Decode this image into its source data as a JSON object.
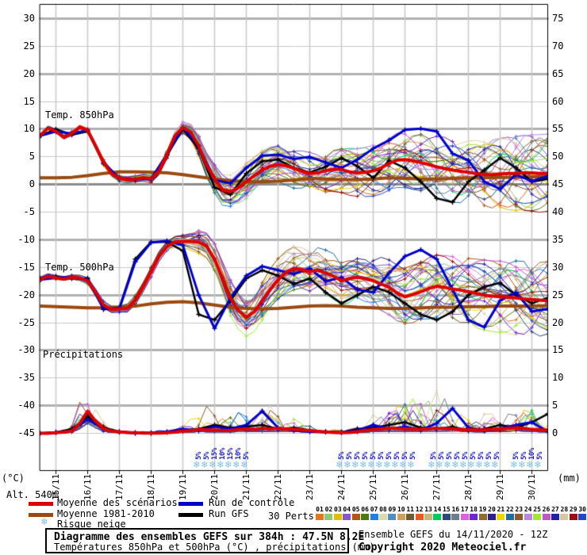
{
  "alt_label": "Alt. 540m",
  "axis_units": {
    "left": "(°C)",
    "right": "(mm)"
  },
  "panel_labels": {
    "t850": "Temp. 850hPa",
    "t500": "Temp. 500hPa",
    "precip": "Précipitations"
  },
  "legend": {
    "mean": "Moyenne des scénarios",
    "climo": "Moyenne 1981-2010",
    "snow": "Risque neige",
    "control": "Run de contrôle",
    "gfs": "Run GFS",
    "perts": "30 Perts."
  },
  "colors": {
    "mean": "#dd0000",
    "climo": "#9a4a10",
    "control": "#0000cc",
    "gfs": "#000000",
    "snowflake": "#7fc0e8",
    "snow_label": "#2222cc",
    "grid_minor": "#c8c8c8",
    "grid_major": "#b0b0b0",
    "zero_line": "#8c8c8c",
    "border": "#000000"
  },
  "members": {
    "count": 30,
    "labels": [
      "01",
      "02",
      "03",
      "04",
      "05",
      "06",
      "07",
      "08",
      "09",
      "10",
      "11",
      "12",
      "13",
      "14",
      "15",
      "16",
      "17",
      "18",
      "19",
      "20",
      "21",
      "22",
      "23",
      "24",
      "25",
      "26",
      "27",
      "28",
      "29",
      "30"
    ],
    "colors": [
      "#e07820",
      "#90c878",
      "#e0c000",
      "#8858c8",
      "#b05818",
      "#507a10",
      "#2080e8",
      "#ded8b0",
      "#5090c0",
      "#d0a058",
      "#6e5c30",
      "#e85c20",
      "#c8b878",
      "#00cc60",
      "#2e4878",
      "#6e7e90",
      "#e060e0",
      "#6a28d0",
      "#8e6e2e",
      "#2e1e90",
      "#e8d800",
      "#1e6ea0",
      "#8e5a28",
      "#bb88dd",
      "#a0e838",
      "#c058c8",
      "#2020a8",
      "#d8c8a0",
      "#981010",
      "#2048c8"
    ]
  },
  "snow_risk": {
    "groups": [
      {
        "start_day": 5.0,
        "step_day": 0.25,
        "percents": [
          "5%",
          "5%",
          "15%",
          "10%",
          "15%",
          "10%",
          "5%"
        ]
      },
      {
        "start_day": 9.5,
        "step_day": 0.25,
        "percents": [
          "5%",
          "5%",
          "5%",
          "5%",
          "5%",
          "5%",
          "5%",
          "5%",
          "5%",
          "5%"
        ]
      },
      {
        "start_day": 12.4,
        "step_day": 0.25,
        "percents": [
          "5%",
          "5%",
          "5%",
          "5%",
          "5%",
          "5%",
          "5%",
          "5%",
          "5%"
        ]
      },
      {
        "start_day": 15.0,
        "step_day": 0.25,
        "percents": [
          "5%",
          "5%",
          "10%",
          "5%"
        ]
      }
    ]
  },
  "title_box": {
    "line1": "Diagramme des ensembles GEFS sur 384h : 47.5N 8.2E",
    "line2": "Températures 850hPa et 500hPa (°C) , précipitations (mm)"
  },
  "footer": {
    "run_info": "Ensemble GEFS du 14/11/2020 - 12Z",
    "copyright": "Copyright 2020 Meteociel.fr"
  },
  "chart_data": {
    "type": "line",
    "x_axis": {
      "run_start": "14/11/2020 12Z",
      "hours_total": 384,
      "days_total": 16,
      "label_dates": [
        "15/11",
        "16/11",
        "17/11",
        "18/11",
        "19/11",
        "20/11",
        "21/11",
        "22/11",
        "23/11",
        "24/11",
        "25/11",
        "26/11",
        "27/11",
        "28/11",
        "29/11",
        "30/11"
      ]
    },
    "y_axis_left": {
      "min": -45,
      "max": 30,
      "ticks": [
        30,
        25,
        20,
        15,
        10,
        5,
        0,
        -5,
        -10,
        -15,
        -20,
        -25,
        -30,
        -35,
        -40,
        -45
      ]
    },
    "y_axis_right": {
      "min": 0,
      "max": 75,
      "ticks": [
        75,
        70,
        65,
        60,
        55,
        50,
        45,
        40,
        35,
        30,
        25,
        20,
        15,
        10,
        5,
        0
      ]
    },
    "panels": [
      {
        "id": "t850",
        "label": "Temp. 850hPa",
        "mean": {
          "step": 0.25,
          "values": [
            8.8,
            10.2,
            9.6,
            8.5,
            9.2,
            10.4,
            9.8,
            7.0,
            4.0,
            2.0,
            1.1,
            0.9,
            1.0,
            1.2,
            1.0,
            2.5,
            5.5,
            8.8,
            10.3,
            9.5,
            7.0,
            3.5,
            1.0,
            -1.0,
            -1.3,
            -0.6,
            0.5,
            1.6,
            2.6,
            3.3,
            3.6,
            3.4,
            2.9,
            2.4,
            2.0,
            2.1,
            2.5,
            2.8,
            2.7,
            2.3,
            2.1,
            2.2,
            2.5,
            3.0,
            3.8,
            4.4,
            4.5,
            4.3,
            4.0,
            3.6,
            3.2,
            2.9,
            2.6,
            2.4,
            2.2,
            2.0,
            1.8,
            1.8,
            1.9,
            2.0,
            2.0,
            2.1,
            2.1,
            2.0,
            2.0
          ]
        },
        "control": {
          "step": 0.5,
          "values": [
            8.8,
            9.6,
            9.2,
            9.8,
            4.0,
            1.1,
            1.0,
            1.0,
            5.5,
            10.3,
            7.0,
            0.8,
            0.2,
            3.0,
            5.2,
            5.4,
            4.6,
            5.0,
            4.0,
            3.0,
            4.5,
            6.5,
            8.0,
            9.9,
            10.1,
            9.6,
            5.6,
            4.4,
            0.5,
            -0.8,
            1.8,
            0.6,
            1.5
          ]
        },
        "gfs": {
          "step": 0.5,
          "values": [
            8.8,
            10.0,
            9.0,
            9.6,
            3.8,
            1.0,
            0.9,
            1.1,
            5.3,
            10.0,
            6.5,
            -0.5,
            -1.8,
            2.0,
            4.2,
            4.5,
            3.0,
            2.2,
            3.2,
            4.8,
            3.3,
            1.2,
            4.3,
            3.0,
            0.5,
            -2.5,
            -3.2,
            0.5,
            2.6,
            4.8,
            3.0,
            0.5,
            1.0
          ]
        },
        "climatology": {
          "step": 0.5,
          "values": [
            1.2,
            1.2,
            1.3,
            1.6,
            2.0,
            2.3,
            2.3,
            2.2,
            2.1,
            1.8,
            1.4,
            1.0,
            0.7,
            0.5,
            0.5,
            0.6,
            0.8,
            1.1,
            1.0,
            0.9,
            0.9,
            1.0,
            1.2,
            1.1,
            1.0,
            1.0,
            1.1,
            1.2,
            1.2,
            1.3,
            1.3,
            1.4,
            1.5
          ]
        },
        "spread": {
          "step": 0.5,
          "values": [
            0.4,
            0.4,
            0.4,
            0.4,
            0.5,
            0.5,
            0.5,
            0.6,
            0.7,
            0.9,
            1.6,
            2.2,
            2.6,
            2.9,
            3.0,
            3.0,
            3.1,
            3.3,
            3.5,
            3.6,
            3.8,
            4.0,
            4.2,
            4.4,
            4.6,
            4.8,
            5.0,
            5.2,
            5.4,
            5.6,
            5.8,
            6.0,
            6.2
          ]
        }
      },
      {
        "id": "t500",
        "label": "Temp. 500hPa",
        "mean": {
          "step": 0.25,
          "values": [
            -17.2,
            -16.6,
            -16.9,
            -17.1,
            -16.8,
            -16.9,
            -17.4,
            -19.5,
            -21.8,
            -22.6,
            -22.5,
            -22.4,
            -21.0,
            -18.5,
            -15.8,
            -13.0,
            -11.2,
            -10.4,
            -10.3,
            -10.3,
            -10.4,
            -11.2,
            -13.5,
            -17.0,
            -20.5,
            -22.8,
            -24.0,
            -23.0,
            -21.0,
            -19.0,
            -17.2,
            -15.9,
            -15.2,
            -15.4,
            -15.8,
            -15.5,
            -16.0,
            -16.6,
            -17.4,
            -17.0,
            -16.8,
            -17.0,
            -17.4,
            -18.0,
            -18.6,
            -19.6,
            -20.3,
            -19.9,
            -19.4,
            -18.8,
            -18.4,
            -18.6,
            -18.9,
            -19.1,
            -19.4,
            -19.7,
            -20.0,
            -20.2,
            -20.3,
            -20.4,
            -20.5,
            -20.7,
            -20.8,
            -20.9,
            -21.0
          ]
        },
        "control": {
          "step": 0.5,
          "values": [
            -17.2,
            -16.9,
            -16.8,
            -17.3,
            -22.4,
            -22.5,
            -14.0,
            -10.5,
            -10.2,
            -11.0,
            -20.0,
            -26.0,
            -20.5,
            -16.5,
            -14.8,
            -15.5,
            -16.2,
            -15.2,
            -17.5,
            -16.8,
            -19.0,
            -19.5,
            -16.0,
            -13.0,
            -11.8,
            -13.5,
            -19.0,
            -24.5,
            -25.8,
            -21.0,
            -19.5,
            -23.0,
            -22.5
          ]
        },
        "gfs": {
          "step": 0.5,
          "values": [
            -17.2,
            -16.7,
            -17.0,
            -17.0,
            -22.6,
            -22.3,
            -13.5,
            -10.4,
            -10.4,
            -12.0,
            -23.5,
            -24.5,
            -21.0,
            -17.0,
            -15.5,
            -16.5,
            -18.0,
            -17.0,
            -19.5,
            -21.5,
            -20.0,
            -18.5,
            -19.5,
            -21.5,
            -23.5,
            -24.5,
            -23.0,
            -20.0,
            -18.5,
            -17.8,
            -20.0,
            -21.5,
            -20.5
          ]
        },
        "climatology": {
          "step": 0.5,
          "values": [
            -22.0,
            -22.1,
            -22.2,
            -22.3,
            -22.3,
            -22.2,
            -22.0,
            -21.6,
            -21.3,
            -21.2,
            -21.4,
            -21.8,
            -22.2,
            -22.4,
            -22.5,
            -22.4,
            -22.2,
            -22.0,
            -21.9,
            -22.0,
            -22.2,
            -22.3,
            -22.4,
            -22.4,
            -22.3,
            -22.2,
            -22.2,
            -22.1,
            -22.1,
            -22.0,
            -22.0,
            -22.0,
            -21.9
          ]
        },
        "spread": {
          "step": 0.5,
          "values": [
            0.4,
            0.4,
            0.4,
            0.5,
            0.6,
            0.6,
            0.8,
            0.8,
            0.8,
            1.0,
            1.8,
            2.4,
            2.8,
            3.0,
            3.2,
            3.3,
            3.4,
            3.5,
            3.6,
            3.7,
            3.9,
            4.1,
            4.3,
            4.5,
            4.7,
            4.9,
            5.1,
            5.3,
            5.5,
            5.6,
            5.8,
            6.0,
            6.2
          ]
        }
      },
      {
        "id": "precip",
        "label": "Précipitations",
        "baseline_left_value": -45,
        "mean": {
          "step": 0.25,
          "values": [
            0,
            0,
            0.1,
            0.2,
            0.4,
            1.8,
            4.0,
            2.2,
            0.8,
            0.4,
            0.25,
            0.15,
            0.1,
            0.05,
            0.05,
            0.05,
            0.1,
            0.2,
            0.4,
            0.5,
            0.7,
            0.6,
            0.6,
            0.5,
            0.5,
            0.7,
            0.8,
            0.7,
            0.9,
            0.8,
            0.9,
            0.8,
            0.7,
            0.6,
            0.5,
            0.35,
            0.25,
            0.15,
            0.1,
            0.15,
            0.3,
            0.5,
            0.7,
            0.8,
            0.9,
            0.85,
            0.8,
            0.75,
            0.7,
            0.8,
            0.9,
            0.85,
            0.8,
            0.7,
            0.65,
            0.6,
            0.6,
            0.7,
            0.8,
            0.9,
            1.0,
            0.9,
            0.7,
            0.6,
            0.6
          ]
        },
        "control": {
          "step": 0.5,
          "values": [
            0,
            0.1,
            0.5,
            2.5,
            0.8,
            0.2,
            0,
            0.1,
            0.3,
            0.8,
            0.5,
            1.2,
            0.8,
            1.5,
            4.0,
            1.0,
            0.5,
            0.3,
            0.2,
            0.1,
            0.5,
            1.5,
            0.8,
            1.2,
            0.6,
            1.8,
            4.5,
            1.0,
            0.5,
            0.8,
            1.5,
            2.0,
            0.3
          ]
        },
        "gfs": {
          "step": 0.5,
          "values": [
            0,
            0.2,
            0.8,
            3.0,
            1.0,
            0.3,
            0.1,
            0,
            0.2,
            0.5,
            0.8,
            1.5,
            1.0,
            1.2,
            1.5,
            0.8,
            1.0,
            0.5,
            0.3,
            0.2,
            0.8,
            1.0,
            1.5,
            2.0,
            1.0,
            0.8,
            1.2,
            0.5,
            0.8,
            1.5,
            1.0,
            2.0,
            3.5
          ]
        },
        "envelope_max": {
          "step": 0.5,
          "values": [
            0.2,
            0.5,
            2.5,
            13.5,
            3.5,
            1.0,
            0.6,
            0.4,
            1.5,
            3.0,
            8.0,
            8.5,
            8.0,
            9.5,
            10.0,
            6.5,
            4.5,
            2.5,
            1.5,
            1.0,
            3.5,
            5.5,
            6.0,
            9.0,
            10.5,
            13.5,
            6.0,
            5.0,
            5.5,
            5.0,
            6.0,
            12.5,
            4.5
          ]
        }
      }
    ]
  }
}
